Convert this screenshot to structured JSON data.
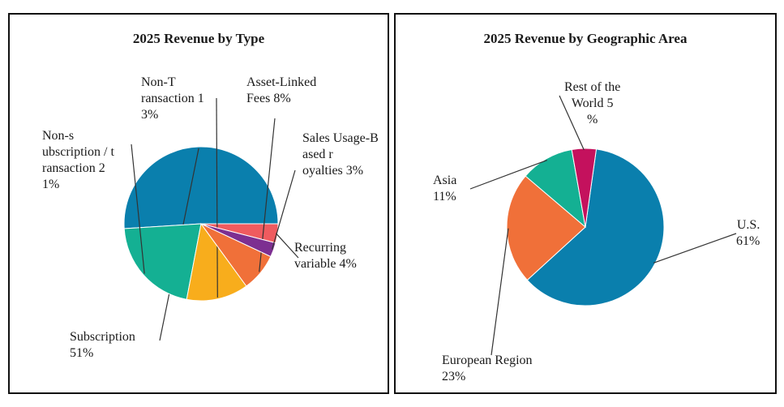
{
  "chart_data": [
    {
      "type": "pie",
      "title": "2025 Revenue by Type",
      "slices": [
        {
          "label": "Recurring variable 4%",
          "value": 4,
          "color": "#ef5b5f"
        },
        {
          "label": "Subscription 51%",
          "value": 51,
          "color": "#0a7fad"
        },
        {
          "label": "Non-subscription / transaction 21%",
          "value": 21,
          "color": "#14b093"
        },
        {
          "label": "Non-Transaction 13%",
          "value": 13,
          "color": "#f8ad1c"
        },
        {
          "label": "Asset-Linked Fees 8%",
          "value": 8,
          "color": "#f07039"
        },
        {
          "label": "Sales Usage-Based royalties 3%",
          "value": 3,
          "color": "#7d2f91"
        }
      ],
      "legend": "none"
    },
    {
      "type": "pie",
      "title": "2025 Revenue by Geographic Area",
      "slices": [
        {
          "label": "U.S. 61%",
          "value": 61,
          "color": "#0a7fad"
        },
        {
          "label": "European Region 23%",
          "value": 23,
          "color": "#f07039"
        },
        {
          "label": "Asia 11%",
          "value": 11,
          "color": "#14b093"
        },
        {
          "label": "Rest of the World 5%",
          "value": 5,
          "color": "#c4115d"
        }
      ],
      "legend": "none"
    }
  ]
}
